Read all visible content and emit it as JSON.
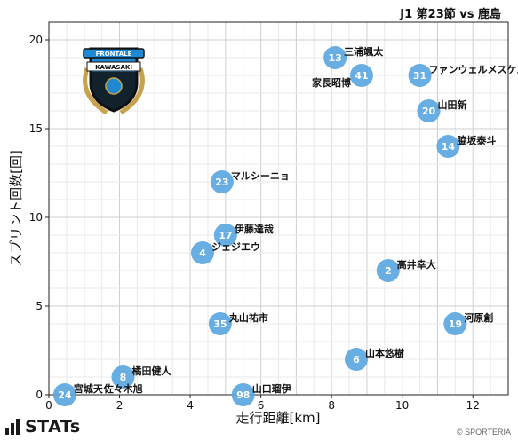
{
  "chart_data": {
    "type": "scatter",
    "title": "J1 第23節 vs 鹿島",
    "xlabel": "走行距離[km]",
    "ylabel": "スプリント回数[回]",
    "xlim": [
      0,
      13
    ],
    "ylim": [
      0,
      21
    ],
    "xticks": [
      0,
      2,
      4,
      6,
      8,
      10,
      12
    ],
    "yticks": [
      0,
      5,
      10,
      15,
      20
    ],
    "grid": true,
    "marker_color": "#5ba7e0",
    "points": [
      {
        "number": "13",
        "name": "三浦颯太",
        "x": 8.1,
        "y": 19
      },
      {
        "number": "41",
        "name": "家長昭博",
        "x": 8.85,
        "y": 18,
        "label_side": "left"
      },
      {
        "number": "31",
        "name": "ファンウェルメスケルケン際",
        "x": 10.5,
        "y": 18
      },
      {
        "number": "20",
        "name": "山田新",
        "x": 10.75,
        "y": 16
      },
      {
        "number": "14",
        "name": "脇坂泰斗",
        "x": 11.3,
        "y": 14
      },
      {
        "number": "23",
        "name": "マルシーニョ",
        "x": 4.9,
        "y": 12
      },
      {
        "number": "17",
        "name": "伊藤達哉",
        "x": 5.0,
        "y": 9
      },
      {
        "number": "4",
        "name": "ジェジエウ",
        "x": 4.35,
        "y": 8
      },
      {
        "number": "2",
        "name": "高井幸大",
        "x": 9.6,
        "y": 7
      },
      {
        "number": "35",
        "name": "丸山祐市",
        "x": 4.85,
        "y": 4
      },
      {
        "number": "19",
        "name": "河原創",
        "x": 11.5,
        "y": 4
      },
      {
        "number": "6",
        "name": "山本悠樹",
        "x": 8.7,
        "y": 2
      },
      {
        "number": "8",
        "name": "橘田健人",
        "x": 2.1,
        "y": 1
      },
      {
        "number": "24",
        "name": "宮城天",
        "x": 0.45,
        "y": 0
      },
      {
        "number": "",
        "name": "佐々木旭",
        "x": 1.3,
        "y": 0
      },
      {
        "number": "98",
        "name": "山口瑠伊",
        "x": 5.5,
        "y": 0
      }
    ]
  },
  "club_logo": {
    "ribbon_top": "FRONTALE",
    "ribbon_mid": "KAWASAKI",
    "colors": {
      "blue": "#1e88d2",
      "black": "#111111",
      "gold": "#c8a24a",
      "white": "#ffffff"
    }
  },
  "footer": {
    "brand": "STATs",
    "copyright": "© SPORTERIA"
  }
}
